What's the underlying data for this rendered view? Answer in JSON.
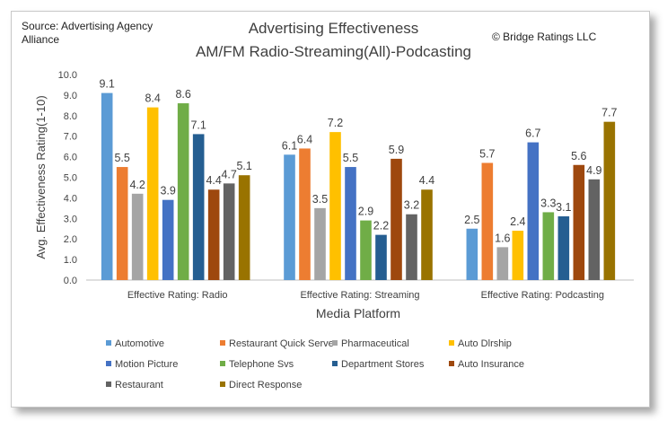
{
  "source_text": "Source: Advertising Agency Alliance",
  "copyright": "© Bridge Ratings LLC",
  "chart_data": {
    "type": "bar",
    "title": "Advertising Effectiveness",
    "subtitle": "AM/FM Radio-Streaming(All)-Podcasting",
    "xlabel": "Media Platform",
    "ylabel": "Avg. Effectiveness Rating(1-10)",
    "ylim": [
      0,
      10
    ],
    "yticks": [
      "0.0",
      "1.0",
      "2.0",
      "3.0",
      "4.0",
      "5.0",
      "6.0",
      "7.0",
      "8.0",
      "9.0",
      "10.0"
    ],
    "categories": [
      "Effective Rating: Radio",
      "Effective Rating: Streaming",
      "Effective Rating: Podcasting"
    ],
    "series": [
      {
        "name": "Automotive",
        "color": "#5B9BD5",
        "values": [
          9.1,
          6.1,
          2.5
        ]
      },
      {
        "name": "Restaurant Quick Serve",
        "color": "#ED7D31",
        "values": [
          5.5,
          6.4,
          5.7
        ]
      },
      {
        "name": "Pharmaceutical",
        "color": "#A5A5A5",
        "values": [
          4.2,
          3.5,
          1.6
        ]
      },
      {
        "name": "Auto Dlrship",
        "color": "#FFC000",
        "values": [
          8.4,
          7.2,
          2.4
        ]
      },
      {
        "name": "Motion Picture",
        "color": "#4472C4",
        "values": [
          3.9,
          5.5,
          6.7
        ]
      },
      {
        "name": "Telephone Svs",
        "color": "#70AD47",
        "values": [
          8.6,
          2.9,
          3.3
        ]
      },
      {
        "name": "Department Stores",
        "color": "#255E91",
        "values": [
          7.1,
          2.2,
          3.1
        ]
      },
      {
        "name": "Auto Insurance",
        "color": "#9E480E",
        "values": [
          4.4,
          5.9,
          5.6
        ]
      },
      {
        "name": "Restaurant",
        "color": "#636363",
        "values": [
          4.7,
          3.2,
          4.9
        ]
      },
      {
        "name": "Direct Response",
        "color": "#997300",
        "values": [
          5.1,
          4.4,
          7.7
        ]
      }
    ],
    "legend": "bottom"
  }
}
